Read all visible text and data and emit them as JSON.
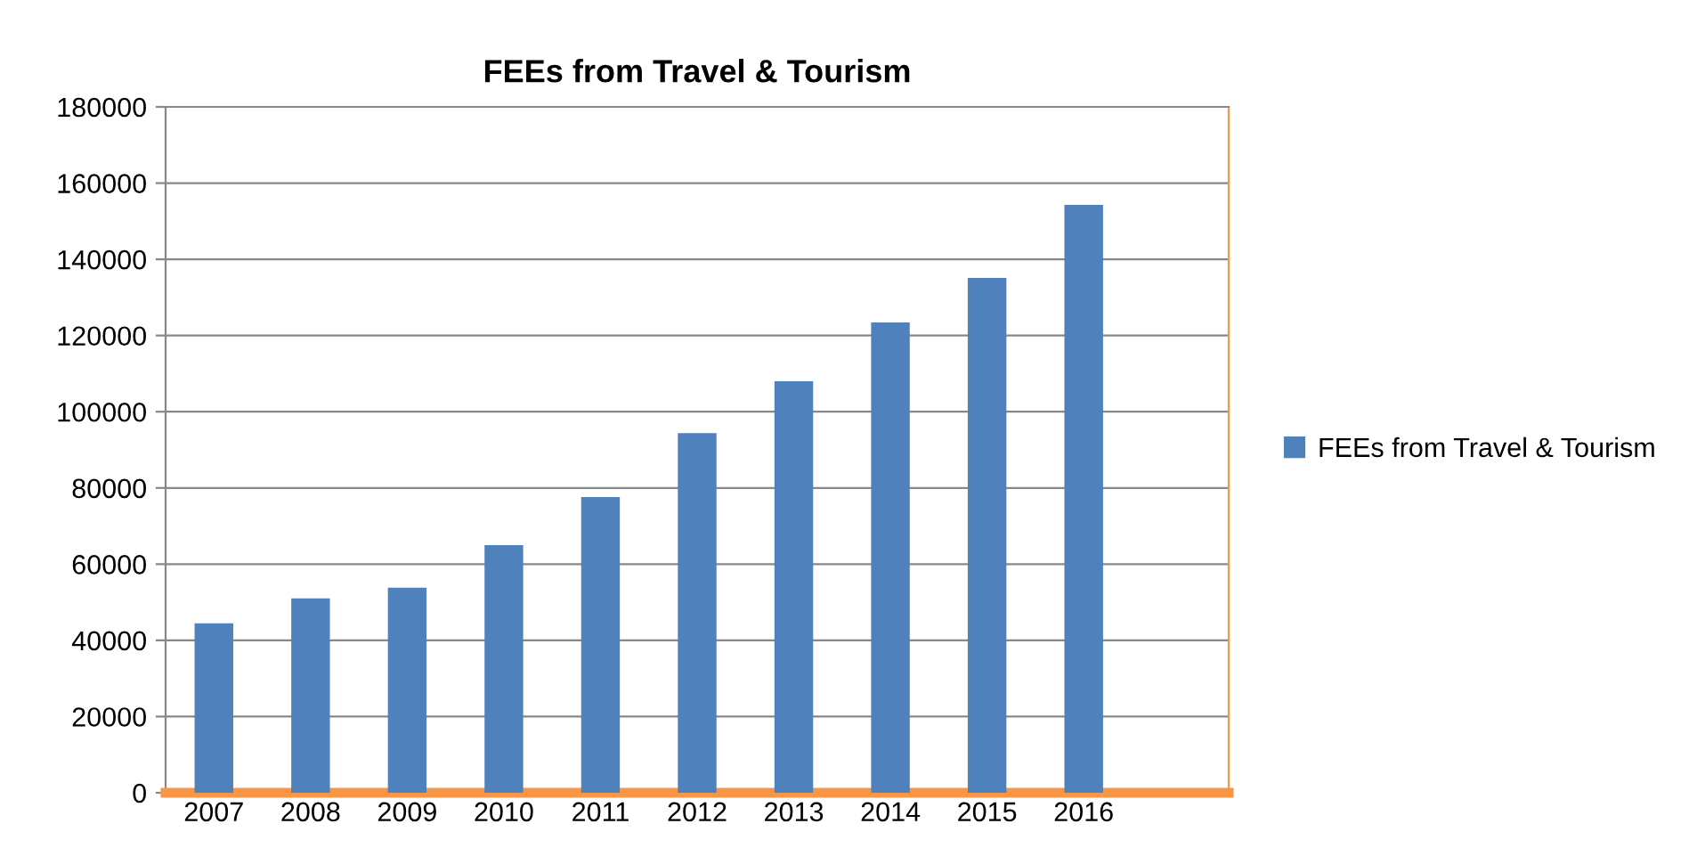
{
  "chart_data": {
    "type": "bar",
    "title": "FEEs from Travel & Tourism",
    "categories": [
      "2007",
      "2008",
      "2009",
      "2010",
      "2011",
      "2012",
      "2013",
      "2014",
      "2015",
      "2016",
      null
    ],
    "series": [
      {
        "name": "FEEs from Travel & Tourism",
        "color": "#4f81bd",
        "values": [
          44500,
          51000,
          53800,
          65000,
          77600,
          94400,
          108000,
          123400,
          135100,
          154300,
          null
        ]
      }
    ],
    "ylim": [
      0,
      180000
    ],
    "yticks": [
      0,
      20000,
      40000,
      60000,
      80000,
      100000,
      120000,
      140000,
      160000,
      180000
    ],
    "grid": "y",
    "legend": "right"
  }
}
